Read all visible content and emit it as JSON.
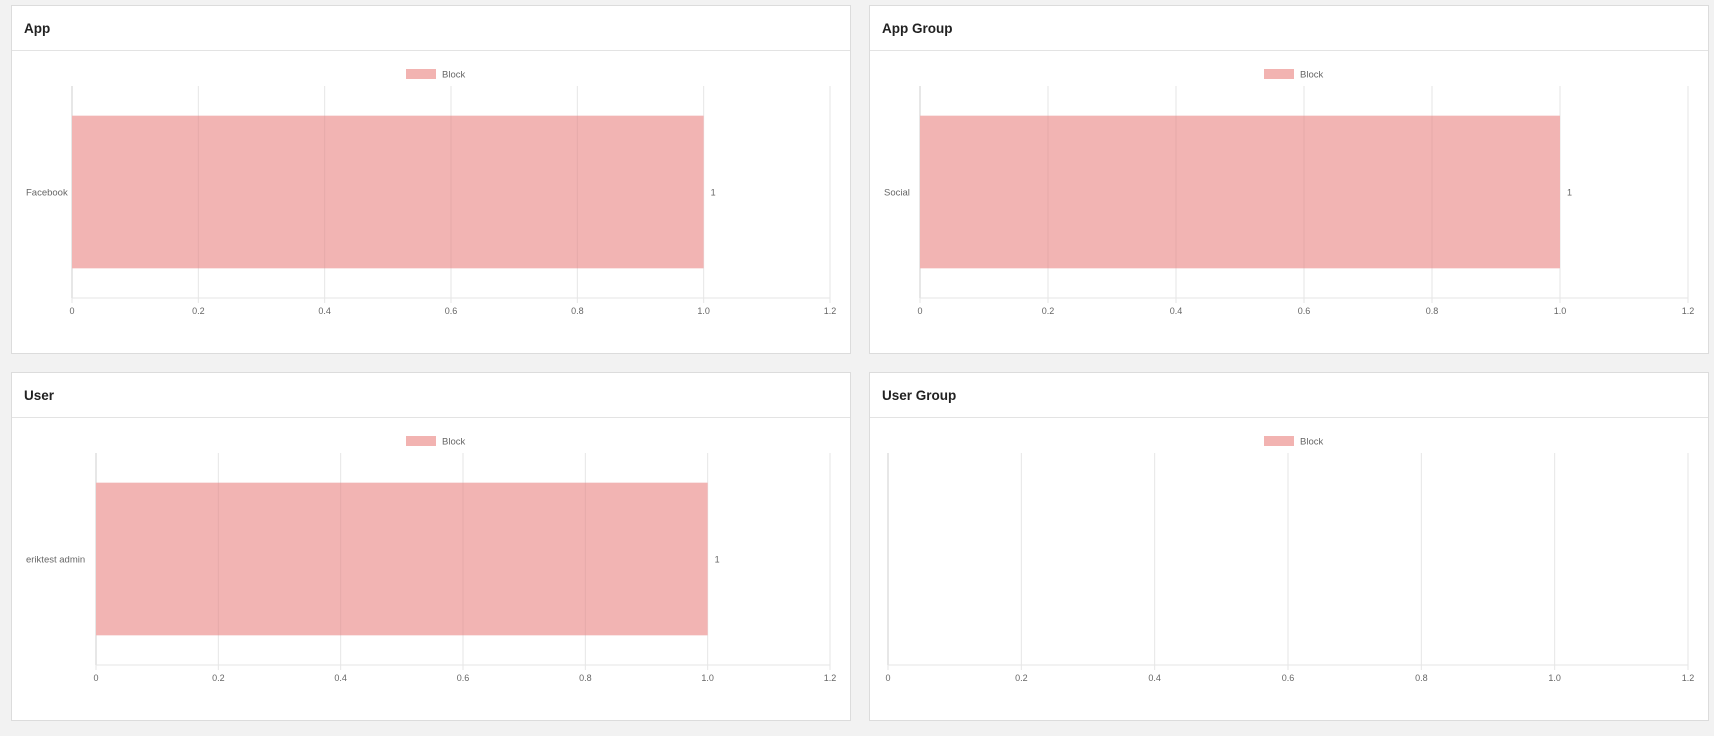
{
  "colors": {
    "bar": "#f2b3b1",
    "grid": "#e6e6e6",
    "axis": "#cfcfcf"
  },
  "panels": [
    {
      "title": "App"
    },
    {
      "title": "App Group"
    },
    {
      "title": "User"
    },
    {
      "title": "User Group"
    }
  ],
  "chart_data": [
    {
      "type": "bar",
      "orientation": "horizontal",
      "legend": [
        "Block"
      ],
      "categories": [
        "Facebook"
      ],
      "series": [
        {
          "name": "Block",
          "values": [
            1
          ]
        }
      ],
      "data_labels": [
        "1"
      ],
      "xlim": [
        0,
        1.2
      ],
      "xticks": [
        "0",
        "0.2",
        "0.4",
        "0.6",
        "0.8",
        "1.0",
        "1.2"
      ],
      "grid": true,
      "legend_position": "top-center"
    },
    {
      "type": "bar",
      "orientation": "horizontal",
      "legend": [
        "Block"
      ],
      "categories": [
        "Social"
      ],
      "series": [
        {
          "name": "Block",
          "values": [
            1
          ]
        }
      ],
      "data_labels": [
        "1"
      ],
      "xlim": [
        0,
        1.2
      ],
      "xticks": [
        "0",
        "0.2",
        "0.4",
        "0.6",
        "0.8",
        "1.0",
        "1.2"
      ],
      "grid": true,
      "legend_position": "top-center"
    },
    {
      "type": "bar",
      "orientation": "horizontal",
      "legend": [
        "Block"
      ],
      "categories": [
        "eriktest admin"
      ],
      "series": [
        {
          "name": "Block",
          "values": [
            1
          ]
        }
      ],
      "data_labels": [
        "1"
      ],
      "xlim": [
        0,
        1.2
      ],
      "xticks": [
        "0",
        "0.2",
        "0.4",
        "0.6",
        "0.8",
        "1.0",
        "1.2"
      ],
      "grid": true,
      "legend_position": "top-center"
    },
    {
      "type": "bar",
      "orientation": "horizontal",
      "legend": [
        "Block"
      ],
      "categories": [],
      "series": [
        {
          "name": "Block",
          "values": []
        }
      ],
      "data_labels": [],
      "xlim": [
        0,
        1.2
      ],
      "xticks": [
        "0",
        "0.2",
        "0.4",
        "0.6",
        "0.8",
        "1.0",
        "1.2"
      ],
      "grid": true,
      "legend_position": "top-center"
    }
  ]
}
